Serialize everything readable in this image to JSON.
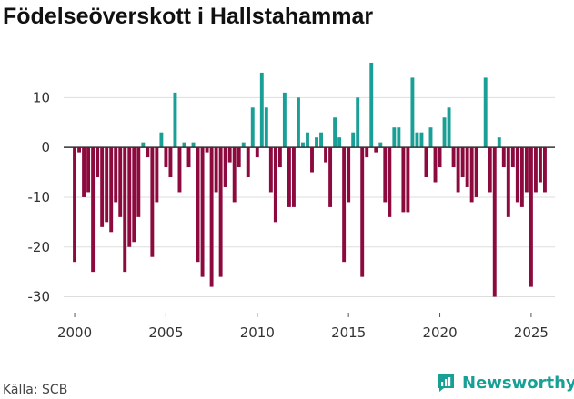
{
  "title": "Födelseöverskott i Hallstahammar",
  "source": "Källa: SCB",
  "brand": {
    "name": "Newsworthy",
    "icon": "newsworthy-logo-icon"
  },
  "colors": {
    "positive": "#1a9f96",
    "negative": "#8c0a3e",
    "grid": "#dddddd",
    "zero_line": "#333333"
  },
  "chart_data": {
    "type": "bar",
    "title": "Födelseöverskott i Hallstahammar",
    "xlabel": "",
    "ylabel": "",
    "x_ticks": [
      2000,
      2005,
      2010,
      2015,
      2020,
      2025
    ],
    "y_ticks": [
      10,
      0,
      -10,
      -20,
      -30
    ],
    "ylim": [
      -33,
      19
    ],
    "xlim": [
      1999.4,
      2026.3
    ],
    "period_step": 0.25,
    "start": 2000.0,
    "values": [
      -23,
      -1,
      -10,
      -9,
      -25,
      -6,
      -16,
      -15,
      -17,
      -11,
      -14,
      -25,
      -20,
      -19,
      -14,
      1,
      -2,
      -22,
      -11,
      3,
      -4,
      -6,
      11,
      -9,
      1,
      -4,
      1,
      -23,
      -26,
      -1,
      -28,
      -9,
      -26,
      -8,
      -3,
      -11,
      -4,
      1,
      -6,
      8,
      -2,
      15,
      8,
      -9,
      -15,
      -4,
      11,
      -12,
      -12,
      10,
      1,
      3,
      -5,
      2,
      3,
      -3,
      -12,
      6,
      2,
      -23,
      -11,
      3,
      10,
      -26,
      -2,
      17,
      -1,
      1,
      -11,
      -14,
      4,
      4,
      -13,
      -13,
      14,
      3,
      3,
      -6,
      4,
      -7,
      -4,
      6,
      8,
      -4,
      -9,
      -6,
      -8,
      -11,
      -10,
      0,
      14,
      -9,
      -30,
      2,
      -4,
      -14,
      -4,
      -11,
      -12,
      -9,
      -28,
      -9,
      -7,
      -9
    ]
  }
}
